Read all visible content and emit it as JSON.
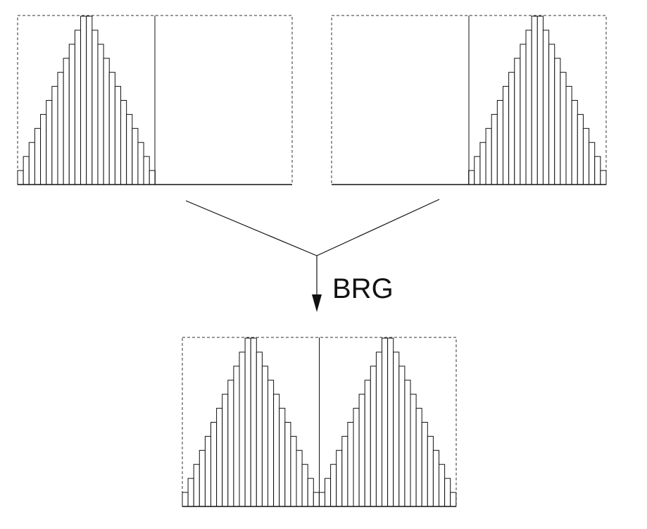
{
  "operation_label": "BRG",
  "panels": [
    {
      "name": "input-left",
      "bar_levels": [
        1,
        2,
        3,
        4,
        5,
        6,
        7,
        8,
        9,
        10,
        11,
        12,
        12,
        11,
        10,
        9,
        8,
        7,
        6,
        5,
        4,
        3,
        2,
        1
      ],
      "occupied_half": "left"
    },
    {
      "name": "input-right",
      "bar_levels": [
        1,
        2,
        3,
        4,
        5,
        6,
        7,
        8,
        9,
        10,
        11,
        12,
        12,
        11,
        10,
        9,
        8,
        7,
        6,
        5,
        4,
        3,
        2,
        1
      ],
      "occupied_half": "right"
    },
    {
      "name": "output-merged",
      "bar_levels": [
        1,
        2,
        3,
        4,
        5,
        6,
        7,
        8,
        9,
        10,
        11,
        12,
        12,
        11,
        10,
        9,
        8,
        7,
        6,
        5,
        4,
        3,
        2,
        1,
        1,
        2,
        3,
        4,
        5,
        6,
        7,
        8,
        9,
        10,
        11,
        12,
        12,
        11,
        10,
        9,
        8,
        7,
        6,
        5,
        4,
        3,
        2,
        1
      ],
      "occupied_half": "both"
    }
  ],
  "colors": {
    "stroke": "#111111",
    "frame": "#333333",
    "background": "#ffffff"
  }
}
